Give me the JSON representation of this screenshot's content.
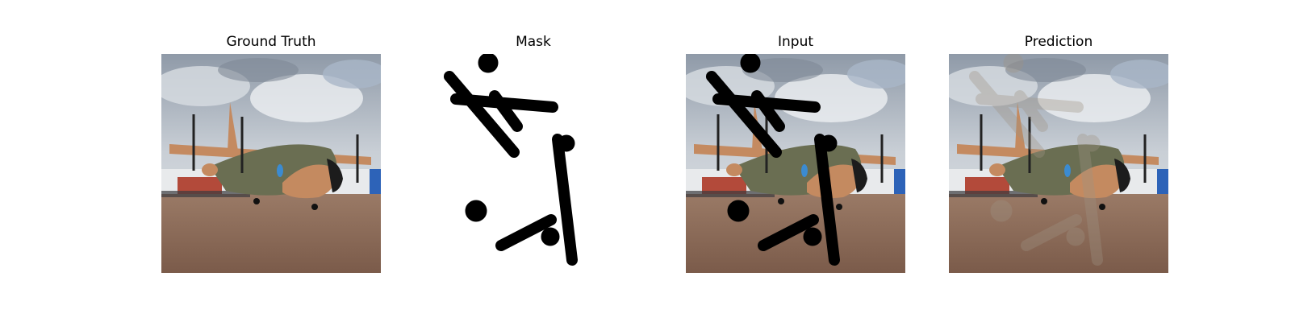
{
  "panels": [
    {
      "title": "Ground Truth"
    },
    {
      "title": "Mask"
    },
    {
      "title": "Input"
    },
    {
      "title": "Prediction"
    }
  ]
}
